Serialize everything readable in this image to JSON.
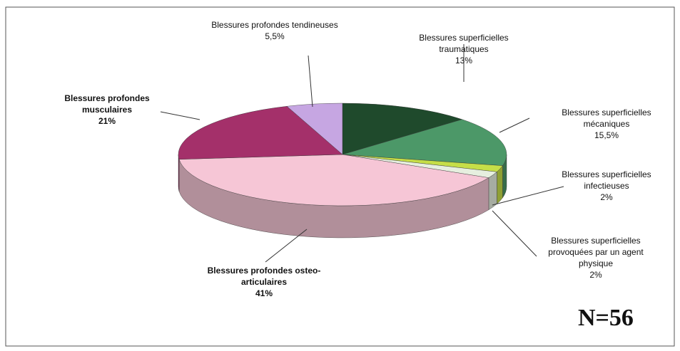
{
  "chart_data": {
    "type": "pie",
    "categories": [
      "Blessures superficielles traumatiques",
      "Blessures superficielles mécaniques",
      "Blessures superficielles infectieuses",
      "Blessures superficielles provoquées par un agent physique",
      "Blessures profondes osteo-articulaires",
      "Blessures profondes musculaires",
      "Blessures profondes tendineuses"
    ],
    "values": [
      13,
      15.5,
      2,
      2,
      41,
      21,
      5.5
    ],
    "value_labels": [
      "13%",
      "15,5%",
      "2%",
      "2%",
      "41%",
      "21%",
      "5,5%"
    ],
    "colors": [
      "#1f4a2c",
      "#4c9868",
      "#c6de48",
      "#e6efdf",
      "#f6c6d6",
      "#a4306a",
      "#c6a6e2"
    ],
    "annotation": "N=56"
  }
}
